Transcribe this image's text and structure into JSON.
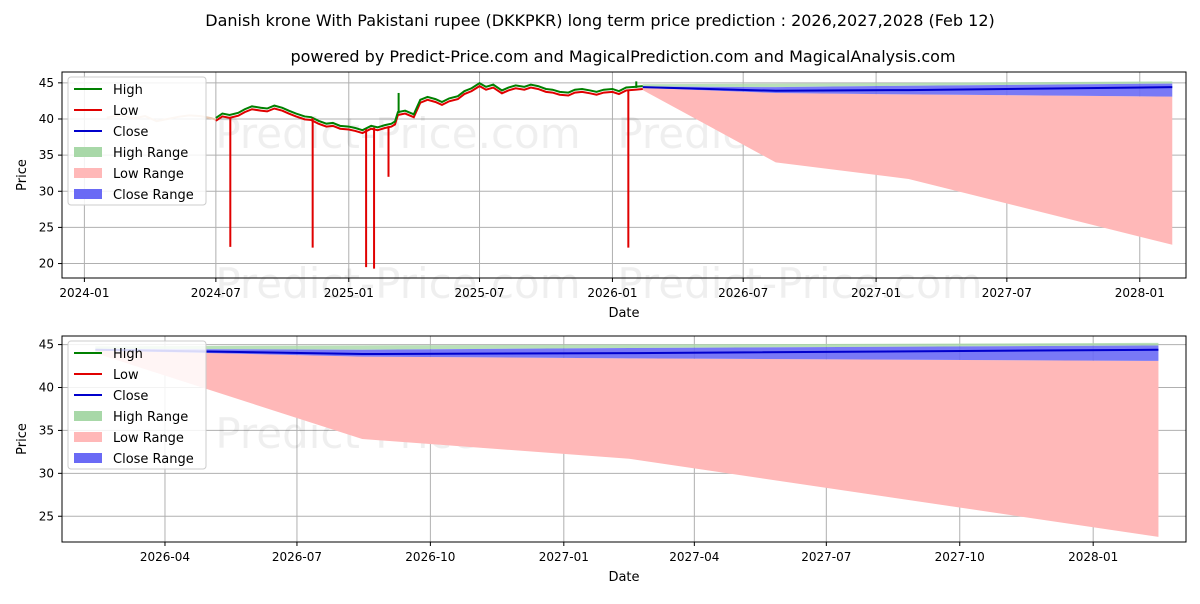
{
  "title": "Danish krone With Pakistani rupee (DKKPKR) long term price prediction : 2026,2027,2028 (Feb 12)",
  "subtitle": "powered by Predict-Price.com and MagicalPrediction.com and MagicalAnalysis.com",
  "watermark": "Predict-Price.com",
  "colors": {
    "high": "#008000",
    "low": "#e00000",
    "close": "#0000cc",
    "high_range": "#a8d8a8",
    "low_range": "#ffb8b8",
    "close_range": "#6a6af5"
  },
  "legend": [
    {
      "label": "High",
      "kind": "line",
      "key": "high"
    },
    {
      "label": "Low",
      "kind": "line",
      "key": "low"
    },
    {
      "label": "Close",
      "kind": "line",
      "key": "close"
    },
    {
      "label": "High Range",
      "kind": "patch",
      "key": "high_range"
    },
    {
      "label": "Low Range",
      "kind": "patch",
      "key": "low_range"
    },
    {
      "label": "Close Range",
      "kind": "patch",
      "key": "close_range"
    }
  ],
  "chart_data": [
    {
      "type": "line",
      "name": "long-term",
      "xlabel": "Date",
      "ylabel": "Price",
      "xlim": [
        "2023-12-01",
        "2028-03-05"
      ],
      "ylim": [
        18,
        46.5
      ],
      "x_ticks": [
        {
          "date": "2024-01-01",
          "label": "2024-01"
        },
        {
          "date": "2024-07-01",
          "label": "2024-07"
        },
        {
          "date": "2025-01-01",
          "label": "2025-01"
        },
        {
          "date": "2025-07-01",
          "label": "2025-07"
        },
        {
          "date": "2026-01-01",
          "label": "2026-01"
        },
        {
          "date": "2026-07-01",
          "label": "2026-07"
        },
        {
          "date": "2027-01-01",
          "label": "2027-01"
        },
        {
          "date": "2027-07-01",
          "label": "2027-07"
        },
        {
          "date": "2028-01-01",
          "label": "2028-01"
        }
      ],
      "y_ticks": [
        20,
        25,
        30,
        35,
        40,
        45
      ],
      "faded_history": [
        [
          "2024-02-01",
          40.2
        ],
        [
          "2024-02-20",
          40.5
        ],
        [
          "2024-03-10",
          40.1
        ],
        [
          "2024-03-25",
          40.4
        ],
        [
          "2024-04-10",
          39.7
        ],
        [
          "2024-04-25",
          40.0
        ],
        [
          "2024-05-10",
          40.3
        ],
        [
          "2024-05-25",
          40.5
        ],
        [
          "2024-06-10",
          40.4
        ],
        [
          "2024-06-25",
          40.1
        ],
        [
          "2024-07-01",
          39.9
        ]
      ],
      "history": [
        [
          "2024-07-01",
          40.0
        ],
        [
          "2024-07-10",
          40.6
        ],
        [
          "2024-07-20",
          40.4
        ],
        [
          "2024-08-01",
          40.7
        ],
        [
          "2024-08-10",
          41.2
        ],
        [
          "2024-08-20",
          41.6
        ],
        [
          "2024-09-01",
          41.4
        ],
        [
          "2024-09-10",
          41.3
        ],
        [
          "2024-09-20",
          41.7
        ],
        [
          "2024-10-01",
          41.4
        ],
        [
          "2024-10-10",
          41.0
        ],
        [
          "2024-10-20",
          40.6
        ],
        [
          "2024-11-01",
          40.2
        ],
        [
          "2024-11-10",
          40.1
        ],
        [
          "2024-11-20",
          39.6
        ],
        [
          "2024-12-01",
          39.2
        ],
        [
          "2024-12-10",
          39.3
        ],
        [
          "2024-12-20",
          38.9
        ],
        [
          "2025-01-01",
          38.8
        ],
        [
          "2025-01-10",
          38.6
        ],
        [
          "2025-01-20",
          38.3
        ],
        [
          "2025-02-01",
          38.9
        ],
        [
          "2025-02-10",
          38.7
        ],
        [
          "2025-02-20",
          39.0
        ],
        [
          "2025-03-01",
          39.2
        ],
        [
          "2025-03-06",
          39.5
        ],
        [
          "2025-03-10",
          40.8
        ],
        [
          "2025-03-20",
          41.0
        ],
        [
          "2025-04-01",
          40.5
        ],
        [
          "2025-04-10",
          42.5
        ],
        [
          "2025-04-20",
          42.9
        ],
        [
          "2025-05-01",
          42.6
        ],
        [
          "2025-05-10",
          42.2
        ],
        [
          "2025-05-20",
          42.7
        ],
        [
          "2025-06-01",
          43.0
        ],
        [
          "2025-06-10",
          43.7
        ],
        [
          "2025-06-20",
          44.1
        ],
        [
          "2025-07-01",
          44.8
        ],
        [
          "2025-07-10",
          44.3
        ],
        [
          "2025-07-20",
          44.6
        ],
        [
          "2025-08-01",
          43.8
        ],
        [
          "2025-08-10",
          44.2
        ],
        [
          "2025-08-20",
          44.5
        ],
        [
          "2025-09-01",
          44.3
        ],
        [
          "2025-09-10",
          44.6
        ],
        [
          "2025-09-20",
          44.4
        ],
        [
          "2025-10-01",
          44.0
        ],
        [
          "2025-10-10",
          43.9
        ],
        [
          "2025-10-20",
          43.6
        ],
        [
          "2025-11-01",
          43.5
        ],
        [
          "2025-11-10",
          43.9
        ],
        [
          "2025-11-20",
          44.0
        ],
        [
          "2025-12-01",
          43.8
        ],
        [
          "2025-12-10",
          43.6
        ],
        [
          "2025-12-20",
          43.9
        ],
        [
          "2026-01-01",
          44.0
        ],
        [
          "2026-01-10",
          43.7
        ],
        [
          "2026-01-20",
          44.2
        ],
        [
          "2026-02-01",
          44.3
        ],
        [
          "2026-02-12",
          44.4
        ]
      ],
      "spikes": [
        {
          "date": "2024-07-21",
          "from": 40.3,
          "to": 22.3,
          "kind": "low"
        },
        {
          "date": "2024-11-12",
          "from": 40.1,
          "to": 22.2,
          "kind": "low"
        },
        {
          "date": "2025-01-25",
          "from": 38.6,
          "to": 19.5,
          "kind": "low"
        },
        {
          "date": "2025-02-05",
          "from": 38.8,
          "to": 19.3,
          "kind": "low"
        },
        {
          "date": "2025-02-25",
          "from": 39.0,
          "to": 32.0,
          "kind": "low"
        },
        {
          "date": "2025-03-11",
          "from": 40.8,
          "to": 43.6,
          "kind": "high"
        },
        {
          "date": "2026-01-23",
          "from": 44.0,
          "to": 22.2,
          "kind": "low"
        },
        {
          "date": "2026-02-03",
          "from": 44.3,
          "to": 45.2,
          "kind": "high"
        }
      ],
      "forecast_close": [
        [
          "2026-02-12",
          44.4
        ],
        [
          "2026-08-15",
          43.9
        ],
        [
          "2027-02-15",
          44.0
        ],
        [
          "2028-02-15",
          44.4
        ]
      ],
      "forecast_ranges": [
        {
          "date": "2026-02-12",
          "high": 44.8,
          "close_hi": 44.5,
          "close_lo": 44.3,
          "low": 44.0
        },
        {
          "date": "2026-08-15",
          "high": 44.9,
          "close_hi": 44.4,
          "close_lo": 43.6,
          "low": 34.0
        },
        {
          "date": "2027-02-15",
          "high": 45.0,
          "close_hi": 44.6,
          "close_lo": 43.4,
          "low": 31.7
        },
        {
          "date": "2028-02-15",
          "high": 45.2,
          "close_hi": 44.9,
          "close_lo": 43.1,
          "low": 22.6
        }
      ]
    },
    {
      "type": "line",
      "name": "forecast-zoom",
      "xlabel": "Date",
      "ylabel": "Price",
      "xlim": [
        "2026-01-20",
        "2028-03-05"
      ],
      "ylim": [
        22,
        46
      ],
      "x_ticks": [
        {
          "date": "2026-04-01",
          "label": "2026-04"
        },
        {
          "date": "2026-07-01",
          "label": "2026-07"
        },
        {
          "date": "2026-10-01",
          "label": "2026-10"
        },
        {
          "date": "2027-01-01",
          "label": "2027-01"
        },
        {
          "date": "2027-04-01",
          "label": "2027-04"
        },
        {
          "date": "2027-07-01",
          "label": "2027-07"
        },
        {
          "date": "2027-10-01",
          "label": "2027-10"
        },
        {
          "date": "2028-01-01",
          "label": "2028-01"
        }
      ],
      "y_ticks": [
        25,
        30,
        35,
        40,
        45
      ],
      "forecast_close": [
        [
          "2026-02-12",
          44.4
        ],
        [
          "2026-08-15",
          43.9
        ],
        [
          "2027-02-15",
          44.0
        ],
        [
          "2028-02-15",
          44.4
        ]
      ],
      "forecast_ranges": [
        {
          "date": "2026-02-12",
          "high": 44.8,
          "close_hi": 44.5,
          "close_lo": 44.3,
          "low": 44.0
        },
        {
          "date": "2026-08-15",
          "high": 44.9,
          "close_hi": 44.4,
          "close_lo": 43.6,
          "low": 34.0
        },
        {
          "date": "2027-02-15",
          "high": 45.0,
          "close_hi": 44.6,
          "close_lo": 43.4,
          "low": 31.7
        },
        {
          "date": "2028-02-15",
          "high": 45.2,
          "close_hi": 44.9,
          "close_lo": 43.1,
          "low": 22.6
        }
      ]
    }
  ]
}
